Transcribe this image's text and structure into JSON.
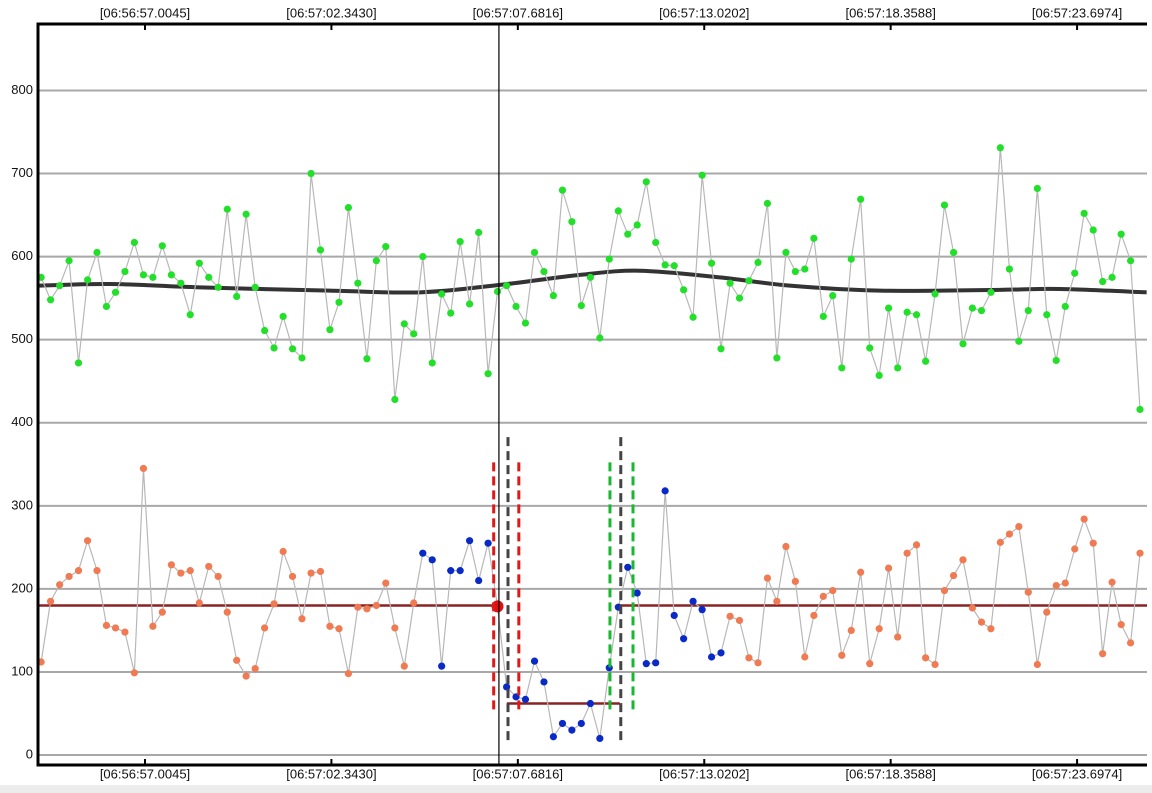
{
  "chart_data": {
    "type": "scatter",
    "x": [
      25014.03,
      25014.3,
      25014.56,
      25014.83,
      25015.1,
      25015.36,
      25015.63,
      25015.9,
      25016.16,
      25016.43,
      25016.7,
      25016.96,
      25017.23,
      25017.5,
      25017.76,
      25018.03,
      25018.3,
      25018.56,
      25018.83,
      25019.1,
      25019.36,
      25019.63,
      25019.9,
      25020.16,
      25020.43,
      25020.7,
      25020.96,
      25021.23,
      25021.5,
      25021.76,
      25022.03,
      25022.3,
      25022.56,
      25022.83,
      25023.1,
      25023.36,
      25023.63,
      25023.9,
      25024.16,
      25024.43,
      25024.7,
      25024.96,
      25025.23,
      25025.5,
      25025.76,
      25026.03,
      25026.3,
      25026.56,
      25026.83,
      25027.1,
      25027.36,
      25027.63,
      25027.9,
      25028.16,
      25028.43,
      25028.7,
      25028.96,
      25029.23,
      25029.5,
      25029.76,
      25030.03,
      25030.3,
      25030.56,
      25030.83,
      25031.1,
      25031.36,
      25031.63,
      25031.9,
      25032.16,
      25032.43,
      25032.7,
      25032.96,
      25033.23,
      25033.5,
      25033.76,
      25034.03,
      25034.3,
      25034.56,
      25034.83,
      25035.1,
      25035.36,
      25035.63,
      25035.9,
      25036.16,
      25036.43,
      25036.7,
      25036.96,
      25037.23,
      25037.5,
      25037.76,
      25038.03,
      25038.3,
      25038.56,
      25038.83,
      25039.1,
      25039.36,
      25039.63,
      25039.9,
      25040.16,
      25040.43,
      25040.7,
      25040.96,
      25041.23,
      25041.5,
      25041.76,
      25042.03,
      25042.3,
      25042.56,
      25042.83,
      25043.1,
      25043.36,
      25043.63,
      25043.9,
      25044.16,
      25044.43,
      25044.7,
      25044.96,
      25045.23,
      25045.5
    ],
    "xlim": [
      25013.94,
      25045.7
    ],
    "xticks": [
      {
        "value": 25017.0045,
        "label": "[06:56:57.0045]"
      },
      {
        "value": 25022.343,
        "label": "[06:57:02.3430]"
      },
      {
        "value": 25027.6816,
        "label": "[06:57:07.6816]"
      },
      {
        "value": 25033.0202,
        "label": "[06:57:13.0202]"
      },
      {
        "value": 25038.3588,
        "label": "[06:57:18.3588]"
      },
      {
        "value": 25043.6974,
        "label": "[06:57:23.6974]"
      }
    ],
    "ylim": [
      -12,
      880
    ],
    "yticks": [
      0,
      100,
      200,
      300,
      400,
      500,
      600,
      700,
      800
    ],
    "grid": true,
    "traces": [
      {
        "line_color": "#b8b8b8",
        "points": [
          {
            "color": "#22e02a",
            "values": [
              575,
              548,
              565,
              595,
              472,
              572,
              605,
              540,
              557,
              582,
              617,
              578,
              575,
              613,
              578,
              568,
              530,
              592,
              575,
              563,
              657,
              552,
              651,
              563,
              511,
              490,
              528,
              489,
              478,
              700,
              608,
              512,
              545,
              659,
              568,
              477,
              595,
              612,
              428,
              519,
              507,
              600,
              472,
              555,
              532,
              618,
              543,
              629,
              459,
              558,
              565,
              540,
              520,
              605,
              582,
              553,
              680,
              642,
              541,
              575,
              502,
              597,
              655,
              627,
              638,
              690,
              617,
              590,
              589,
              560,
              527,
              698,
              592,
              489,
              568,
              550,
              571,
              593,
              664,
              478,
              605,
              582,
              585,
              622,
              528,
              553,
              466,
              597,
              669,
              490,
              457,
              538,
              466,
              533,
              530,
              474,
              555,
              662,
              605,
              495,
              538,
              535,
              557,
              731,
              585,
              498,
              535,
              682,
              530,
              475,
              540,
              580,
              652,
              632,
              570,
              575,
              627,
              595,
              416
            ]
          }
        ]
      },
      {
        "line_color": "#b8b8b8",
        "points": [
          {
            "color": "#f07a52",
            "values": [
              112,
              185,
              205,
              215,
              222,
              258,
              222,
              156,
              153,
              148,
              99,
              345,
              155,
              172,
              229,
              219,
              222,
              183,
              227,
              215,
              172,
              114,
              95,
              104,
              153,
              182,
              245,
              215,
              164,
              219,
              221,
              155,
              152,
              98,
              178,
              176,
              180,
              207,
              153,
              107,
              183,
              null,
              null,
              null,
              null,
              null,
              null,
              null,
              null,
              null,
              null,
              null,
              null,
              null,
              null,
              null,
              null,
              null,
              null,
              null,
              null,
              null,
              null,
              null,
              null,
              null,
              null,
              null,
              null,
              null,
              null,
              null,
              null,
              null,
              167,
              162,
              117,
              111,
              213,
              185,
              251,
              209,
              118,
              168,
              191,
              198,
              120,
              150,
              220,
              110,
              152,
              225,
              142,
              243,
              253,
              117,
              109,
              198,
              216,
              235,
              177,
              160,
              152,
              256,
              266,
              275,
              196,
              109,
              172,
              204,
              207,
              248,
              284,
              255,
              122,
              208,
              157,
              135,
              243
            ]
          },
          {
            "color": "#0a2ac8",
            "values": [
              null,
              null,
              null,
              null,
              null,
              null,
              null,
              null,
              null,
              null,
              null,
              null,
              null,
              null,
              null,
              null,
              null,
              null,
              null,
              null,
              null,
              null,
              null,
              null,
              null,
              null,
              null,
              null,
              null,
              null,
              null,
              null,
              null,
              null,
              null,
              null,
              null,
              null,
              null,
              null,
              null,
              243,
              235,
              107,
              222,
              222,
              258,
              210,
              255,
              null,
              82,
              70,
              67,
              113,
              88,
              22,
              38,
              30,
              38,
              62,
              20,
              105,
              178,
              226,
              195,
              110,
              111,
              318,
              168,
              140,
              185,
              175,
              118,
              123,
              null,
              null,
              null,
              null,
              null,
              null,
              null,
              null,
              null,
              null,
              null,
              null,
              null,
              null,
              null,
              null,
              null,
              null,
              null,
              null,
              null,
              null,
              null,
              null,
              null,
              null,
              null,
              null,
              null,
              null,
              null,
              null,
              null,
              null,
              null,
              null,
              null,
              null,
              null,
              null,
              null,
              null,
              null,
              null,
              null
            ]
          },
          {
            "color": "#e01010",
            "marker": "large",
            "values": [
              null,
              null,
              null,
              null,
              null,
              null,
              null,
              null,
              null,
              null,
              null,
              null,
              null,
              null,
              null,
              null,
              null,
              null,
              null,
              null,
              null,
              null,
              null,
              null,
              null,
              null,
              null,
              null,
              null,
              null,
              null,
              null,
              null,
              null,
              null,
              null,
              null,
              null,
              null,
              null,
              null,
              null,
              null,
              null,
              null,
              null,
              null,
              null,
              null,
              179,
              null,
              null,
              null,
              null,
              null,
              null,
              null,
              null,
              null,
              null,
              null,
              null,
              null,
              null,
              null,
              null,
              null,
              null,
              null,
              null,
              null,
              null,
              null,
              null,
              null,
              null,
              null,
              null,
              null,
              null,
              null,
              null,
              null,
              null,
              null,
              null,
              null,
              null,
              null,
              null,
              null,
              null,
              null,
              null,
              null,
              null,
              null,
              null,
              null,
              null,
              null,
              null,
              null,
              null,
              null,
              null,
              null,
              null,
              null,
              null,
              null,
              null,
              null,
              null,
              null,
              null,
              null,
              null,
              null
            ]
          }
        ]
      }
    ],
    "trend": {
      "color": "#333333",
      "x": [
        25013.94,
        25016.0,
        25018.58,
        25022.3,
        25024.88,
        25027.17,
        25029.46,
        25031.17,
        25033.46,
        25035.47,
        25038.05,
        25041.48,
        25043.2,
        25045.69
      ],
      "values": [
        565,
        567,
        563,
        559,
        557,
        566,
        578,
        583,
        575,
        565,
        559,
        560,
        561,
        557
      ]
    },
    "levels": [
      {
        "color": "#8b2222",
        "value": 180,
        "xlim": [
          25013.94,
          25027.14
        ]
      },
      {
        "color": "#8b2222",
        "value": 62,
        "xlim": [
          25027.37,
          25030.6
        ]
      },
      {
        "color": "#8b2222",
        "value": 180,
        "xlim": [
          25030.6,
          25045.7
        ]
      }
    ],
    "cursor": {
      "color": "#000000",
      "x": 25027.14
    },
    "markers": [
      {
        "color": "#e01818",
        "x": 25026.99,
        "ylim": [
          55,
          355
        ]
      },
      {
        "color": "#e01818",
        "x": 25027.71,
        "ylim": [
          55,
          355
        ]
      },
      {
        "color": "#444444",
        "x": 25027.4,
        "ylim": [
          18,
          387
        ]
      },
      {
        "color": "#444444",
        "x": 25030.63,
        "ylim": [
          18,
          387
        ]
      },
      {
        "color": "#18b830",
        "x": 25030.32,
        "ylim": [
          55,
          355
        ]
      },
      {
        "color": "#18b830",
        "x": 25030.98,
        "ylim": [
          55,
          355
        ]
      }
    ]
  }
}
